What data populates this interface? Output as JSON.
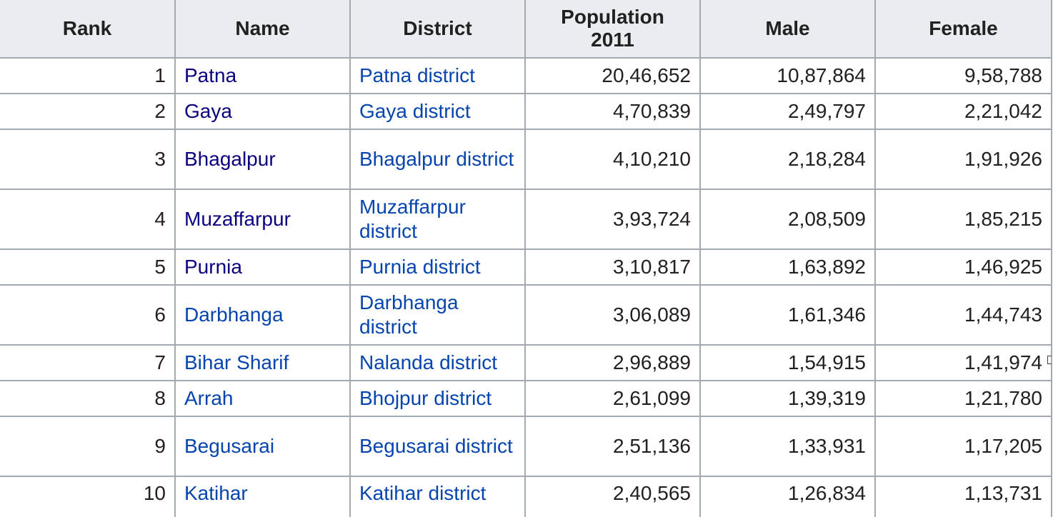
{
  "table": {
    "headers": {
      "rank": "Rank",
      "name": "Name",
      "district": "District",
      "population_line1": "Population",
      "population_line2": "2011",
      "male": "Male",
      "female": "Female"
    },
    "colors": {
      "link": "#0645ad",
      "visited_link": "#0b0080",
      "header_bg": "#eaecf0",
      "border": "#a2a9b1"
    },
    "rows": [
      {
        "rank": "1",
        "name": "Patna",
        "district": "Patna district",
        "population": "20,46,652",
        "male": "10,87,864",
        "female": "9,58,788"
      },
      {
        "rank": "2",
        "name": "Gaya",
        "district": "Gaya district",
        "population": "4,70,839",
        "male": "2,49,797",
        "female": "2,21,042"
      },
      {
        "rank": "3",
        "name": "Bhagalpur",
        "district": "Bhagalpur district",
        "population": "4,10,210",
        "male": "2,18,284",
        "female": "1,91,926"
      },
      {
        "rank": "4",
        "name": "Muzaffarpur",
        "district": "Muzaffarpur district",
        "population": "3,93,724",
        "male": "2,08,509",
        "female": "1,85,215"
      },
      {
        "rank": "5",
        "name": "Purnia",
        "district": "Purnia district",
        "population": "3,10,817",
        "male": "1,63,892",
        "female": "1,46,925"
      },
      {
        "rank": "6",
        "name": "Darbhanga",
        "district": "Darbhanga district",
        "population": "3,06,089",
        "male": "1,61,346",
        "female": "1,44,743"
      },
      {
        "rank": "7",
        "name": "Bihar Sharif",
        "district": "Nalanda district",
        "population": "2,96,889",
        "male": "1,54,915",
        "female": "1,41,974"
      },
      {
        "rank": "8",
        "name": "Arrah",
        "district": "Bhojpur district",
        "population": "2,61,099",
        "male": "1,39,319",
        "female": "1,21,780"
      },
      {
        "rank": "9",
        "name": "Begusarai",
        "district": "Begusarai district",
        "population": "2,51,136",
        "male": "1,33,931",
        "female": "1,17,205"
      },
      {
        "rank": "10",
        "name": "Katihar",
        "district": "Katihar district",
        "population": "2,40,565",
        "male": "1,26,834",
        "female": "1,13,731"
      }
    ]
  }
}
